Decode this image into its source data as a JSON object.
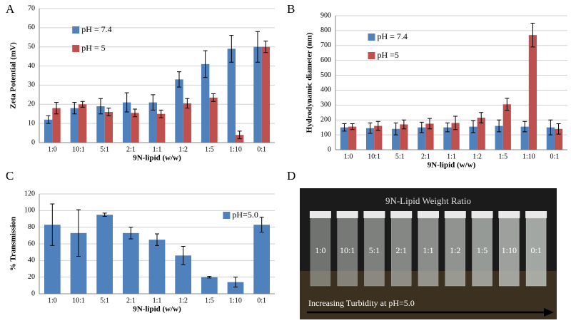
{
  "chart_data": [
    {
      "type": "bar",
      "panel_label": "A",
      "y_label": "Zeta Potential (mV)",
      "x_label": "9N-lipid (w/w)",
      "categories": [
        "1:0",
        "10:1",
        "5:1",
        "2:1",
        "1:1",
        "1:2",
        "1:5",
        "1:10",
        "0:1"
      ],
      "series": [
        {
          "name": "pH = 7.4",
          "color": "#4f81bd",
          "values": [
            12,
            18,
            19,
            21,
            21,
            33,
            41,
            49,
            50
          ],
          "errors": [
            2,
            3,
            4,
            5,
            4,
            4,
            7,
            7,
            8
          ]
        },
        {
          "name": "pH = 5",
          "color": "#c0504d",
          "values": [
            18,
            20,
            16,
            15.5,
            15,
            20.5,
            23.5,
            4,
            50
          ],
          "errors": [
            3,
            1.5,
            2,
            2,
            2,
            2.5,
            2,
            2,
            3
          ]
        }
      ],
      "ylim": [
        0,
        70
      ],
      "yticks": [
        0,
        10,
        20,
        30,
        40,
        50,
        60,
        70
      ],
      "grid": true
    },
    {
      "type": "bar",
      "panel_label": "B",
      "y_label": "Hydrodynamic diameter (nm)",
      "x_label": "9N-lipid (w/w)",
      "categories": [
        "1:0",
        "10:1",
        "5:1",
        "2:1",
        "1:1",
        "1:2",
        "1:5",
        "1:10",
        "0:1"
      ],
      "series": [
        {
          "name": "pH = 7.4",
          "color": "#4f81bd",
          "values": [
            150,
            145,
            140,
            150,
            150,
            155,
            160,
            155,
            150
          ],
          "errors": [
            25,
            35,
            40,
            35,
            30,
            40,
            40,
            35,
            50
          ]
        },
        {
          "name": "pH =5",
          "color": "#c0504d",
          "values": [
            155,
            160,
            170,
            175,
            180,
            215,
            305,
            770,
            140
          ],
          "errors": [
            20,
            30,
            30,
            35,
            45,
            35,
            40,
            80,
            35
          ]
        }
      ],
      "ylim": [
        0,
        900
      ],
      "yticks": [
        0,
        100,
        200,
        300,
        400,
        500,
        600,
        700,
        800,
        900
      ],
      "grid": true
    },
    {
      "type": "bar",
      "panel_label": "C",
      "y_label": "% Transmission",
      "x_label": "9N-lipid (w/w)",
      "categories": [
        "1:0",
        "10:1",
        "5:1",
        "2:1",
        "1:1",
        "1:2",
        "1:5",
        "1:10",
        "0:1"
      ],
      "series": [
        {
          "name": "pH=5.0",
          "color": "#4f81bd",
          "values": [
            83,
            73,
            95,
            73,
            65,
            46,
            20,
            14,
            83
          ],
          "errors": [
            25,
            28,
            2,
            7,
            7,
            11,
            1,
            6,
            9
          ]
        }
      ],
      "ylim": [
        0,
        120
      ],
      "yticks": [
        0,
        20,
        40,
        60,
        80,
        100,
        120
      ],
      "grid": true
    }
  ],
  "photo_panel": {
    "panel_label": "D",
    "title": "9N-Lipid Weight Ratio",
    "labels": [
      "1:0",
      "10:1",
      "5:1",
      "2:1",
      "1:1",
      "1:2",
      "1:5",
      "1:10",
      "0:1"
    ],
    "caption": "Increasing Turbidity at pH=5.0"
  }
}
